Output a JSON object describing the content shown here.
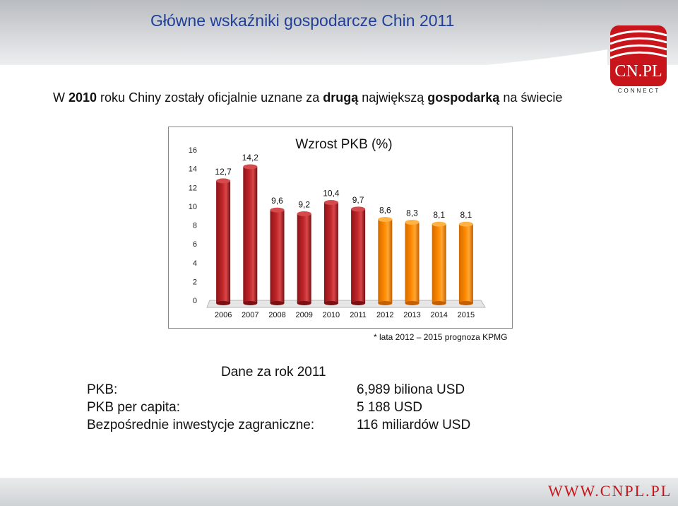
{
  "header": {
    "title": "Główne wskaźniki gospodarcze Chin 2011"
  },
  "logo": {
    "text": "CN.PL",
    "sub": "CONNECT"
  },
  "subtitle": {
    "part1": "W ",
    "part2": "2010",
    "part3": " roku Chiny zostały oficjalnie uznane za ",
    "part4": "drugą",
    "part5": " największą ",
    "part6": "gospodarką",
    "part7": " na świecie"
  },
  "chart_data": {
    "type": "bar",
    "title": "Wzrost PKB (%)",
    "categories": [
      "2006",
      "2007",
      "2008",
      "2009",
      "2010",
      "2011",
      "2012",
      "2013",
      "2014",
      "2015"
    ],
    "values": [
      12.7,
      14.2,
      9.6,
      9.2,
      10.4,
      9.7,
      8.6,
      8.3,
      8.1,
      8.1
    ],
    "value_labels": [
      "12,7",
      "14,2",
      "9,6",
      "9,2",
      "10,4",
      "9,7",
      "8,6",
      "8,3",
      "8,1",
      "8,1"
    ],
    "forecast_from_index": 6,
    "ylim": [
      0,
      16
    ],
    "yticks": [
      "0",
      "2",
      "4",
      "6",
      "8",
      "10",
      "12",
      "14",
      "16"
    ],
    "colors": {
      "actual": "#c0262a",
      "forecast": "#ff8a00"
    },
    "grid": false,
    "legend": "none"
  },
  "footnote": "* lata 2012 – 2015 prognoza KPMG",
  "data_section": {
    "title": "Dane za rok 2011",
    "rows": [
      {
        "label": "PKB:",
        "value": "6,989 biliona USD"
      },
      {
        "label": "PKB per capita:",
        "value": "5 188 USD"
      },
      {
        "label": "Bezpośrednie inwestycje zagraniczne:",
        "value": "116 miliardów USD"
      }
    ]
  },
  "footer": {
    "url": "WWW.CNPL.PL"
  }
}
